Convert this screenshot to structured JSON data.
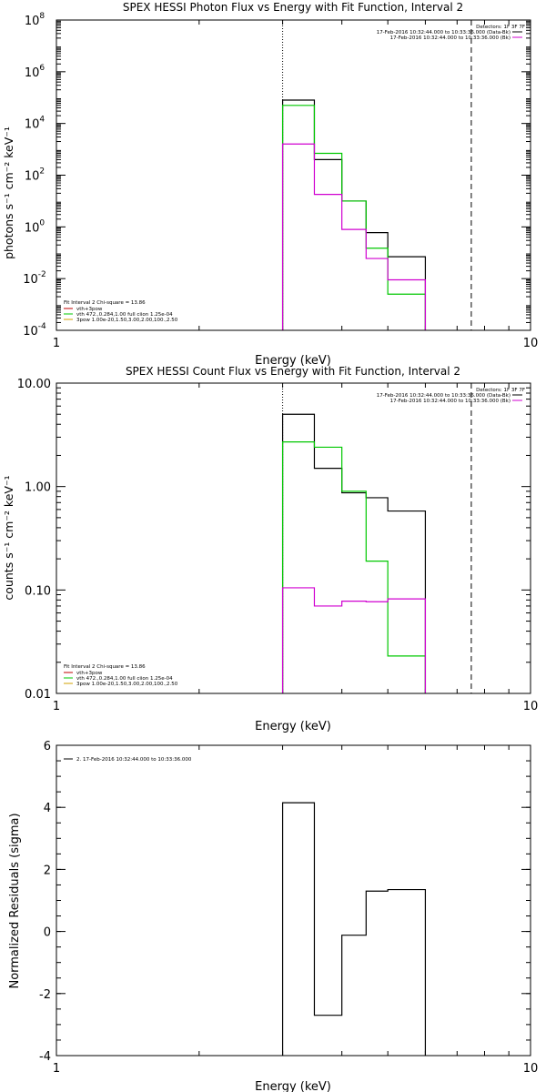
{
  "colors": {
    "total": "#000000",
    "vth": "#00c800",
    "power_law": "#d000d0",
    "sum": "#c00000",
    "background": "#ffffff"
  },
  "chart_data": [
    {
      "type": "step",
      "title": "SPEX HESSI Photon Flux vs Energy with Fit Function, Interval 2",
      "xlabel": "Energy (keV)",
      "ylabel": "photons s⁻¹ cm⁻² keV⁻¹",
      "xscale": "log",
      "yscale": "log",
      "xlim": [
        1,
        10
      ],
      "ylim": [
        0.0001,
        100000000
      ],
      "xticks": [
        {
          "v": 1,
          "label": "1"
        },
        {
          "v": 10,
          "label": "10"
        }
      ],
      "yticks": [
        {
          "v": 0.0001,
          "b": "10",
          "e": "-4"
        },
        {
          "v": 0.01,
          "b": "10",
          "e": "-2"
        },
        {
          "v": 1,
          "b": "10",
          "e": "0"
        },
        {
          "v": 100,
          "b": "10",
          "e": "2"
        },
        {
          "v": 10000,
          "b": "10",
          "e": "4"
        },
        {
          "v": 1000000,
          "b": "10",
          "e": "6"
        },
        {
          "v": 100000000,
          "b": "10",
          "e": "8"
        }
      ],
      "vlines": [
        {
          "x": 3.0,
          "style": "dotted"
        },
        {
          "x": 7.5,
          "style": "dashed"
        }
      ],
      "detector_label": "Detectors: 1F 3F 7F",
      "time_legend": [
        "17-Feb-2016 10:32:44.000 to 10:33:36.000 (Data-Bk)",
        "17-Feb-2016 10:32:44.000 to 10:33:36.000 (Bk)"
      ],
      "fit_legend_title": "Fit Interval  2   Chi-square = 13.86",
      "fit_legend": [
        {
          "label": "vth+3pow",
          "series": "sum"
        },
        {
          "label": "vth 472.,0.284,1.00  full ciion 1.25e-04",
          "series": "vth"
        },
        {
          "label": "3pow 1.00e-20,1.50,3.00,2.00,100.,2.50",
          "series": "pow"
        }
      ],
      "bin_edges": [
        3.0,
        3.5,
        4.0,
        4.5,
        5.0,
        6.0,
        7.5
      ],
      "series": [
        {
          "key": "total",
          "name": "Data-Bk",
          "values": [
            80000,
            400,
            10,
            0.6,
            0.07,
            null
          ]
        },
        {
          "key": "vth",
          "name": "vth",
          "values": [
            50000,
            700,
            10,
            0.15,
            0.0025,
            null
          ]
        },
        {
          "key": "power_law",
          "name": "Bk",
          "values": [
            1600,
            18,
            0.8,
            0.06,
            0.009,
            null
          ]
        }
      ]
    },
    {
      "type": "step",
      "title": "SPEX HESSI Count Flux vs Energy with Fit Function, Interval 2",
      "xlabel": "Energy (keV)",
      "ylabel": "counts s⁻¹ cm⁻² keV⁻¹",
      "xscale": "log",
      "yscale": "log",
      "xlim": [
        1,
        10
      ],
      "ylim": [
        0.01,
        10
      ],
      "xticks": [
        {
          "v": 1,
          "label": "1"
        },
        {
          "v": 10,
          "label": "10"
        }
      ],
      "yticks": [
        {
          "v": 0.01,
          "label": "0.01"
        },
        {
          "v": 0.1,
          "label": "0.10"
        },
        {
          "v": 1,
          "label": "1.00"
        },
        {
          "v": 10,
          "label": "10.00"
        }
      ],
      "vlines": [
        {
          "x": 3.0,
          "style": "dotted"
        },
        {
          "x": 7.5,
          "style": "dashed"
        }
      ],
      "detector_label": "Detectors: 1F 3F 7F",
      "time_legend": [
        "17-Feb-2016 10:32:44.000 to 10:33:36.000 (Data-Bk)",
        "17-Feb-2016 10:32:44.000 to 10:33:36.000 (Bk)"
      ],
      "fit_legend_title": "Fit Interval  2   Chi-square = 13.86",
      "fit_legend": [
        {
          "label": "vth+3pow",
          "series": "sum"
        },
        {
          "label": "vth 472.,0.284,1.00  full ciion 1.25e-04",
          "series": "vth"
        },
        {
          "label": "3pow 1.00e-20,1.50,3.00,2.00,100.,2.50",
          "series": "pow"
        }
      ],
      "bin_edges": [
        3.0,
        3.5,
        4.0,
        4.5,
        5.0,
        6.0,
        7.5
      ],
      "series": [
        {
          "key": "total",
          "name": "Data-Bk",
          "values": [
            5.0,
            1.5,
            0.87,
            0.78,
            0.58,
            null
          ]
        },
        {
          "key": "vth",
          "name": "vth",
          "values": [
            2.7,
            2.4,
            0.9,
            0.19,
            0.023,
            null
          ]
        },
        {
          "key": "power_law",
          "name": "Bk",
          "values": [
            0.105,
            0.07,
            0.078,
            0.077,
            0.082,
            null
          ]
        }
      ]
    },
    {
      "type": "step",
      "title": "",
      "xlabel": "Energy (keV)",
      "ylabel": "Normalized Residuals (sigma)",
      "xscale": "log",
      "yscale": "linear",
      "xlim": [
        1,
        10
      ],
      "ylim": [
        -4,
        6
      ],
      "xticks": [
        {
          "v": 1,
          "label": "1"
        },
        {
          "v": 10,
          "label": "10"
        }
      ],
      "yticks": [
        {
          "v": -4,
          "label": "-4"
        },
        {
          "v": -2,
          "label": "-2"
        },
        {
          "v": 0,
          "label": "0"
        },
        {
          "v": 2,
          "label": "2"
        },
        {
          "v": 4,
          "label": "4"
        },
        {
          "v": 6,
          "label": "6"
        }
      ],
      "vlines": [],
      "time_legend_single": "2. 17-Feb-2016 10:32:44.000 to 10:33:36.000",
      "bin_edges": [
        3.0,
        3.5,
        4.0,
        4.5,
        5.0,
        6.0,
        7.5
      ],
      "series": [
        {
          "key": "total",
          "name": "residuals",
          "values": [
            4.15,
            -2.7,
            -0.12,
            1.3,
            1.35,
            null
          ]
        }
      ]
    }
  ]
}
